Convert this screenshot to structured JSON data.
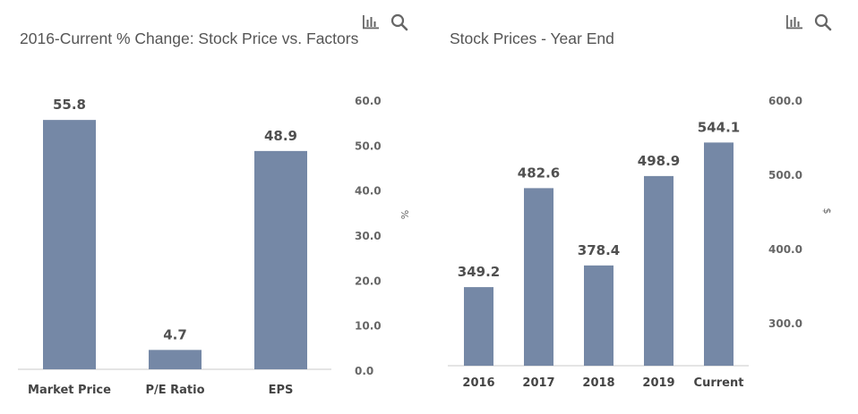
{
  "chart_data": [
    {
      "type": "bar",
      "title": "2016-Current % Change: Stock Price vs. Factors",
      "categories": [
        "Market Price",
        "P/E Ratio",
        "EPS"
      ],
      "values": [
        55.8,
        4.7,
        48.9
      ],
      "value_labels": [
        "55.8",
        "4.7",
        "48.9"
      ],
      "yticks": [
        "60.0",
        "50.0",
        "40.0",
        "30.0",
        "20.0",
        "10.0",
        "0.0"
      ],
      "tick_values": [
        60,
        50,
        40,
        30,
        20,
        10,
        0
      ],
      "ylabel": "%",
      "ylim": [
        0,
        60
      ],
      "yaxis_position": "right",
      "grid": false
    },
    {
      "type": "bar",
      "title": "Stock Prices - Year End",
      "categories": [
        "2016",
        "2017",
        "2018",
        "2019",
        "Current"
      ],
      "values": [
        349.2,
        482.6,
        378.4,
        498.9,
        544.1
      ],
      "value_labels": [
        "349.2",
        "482.6",
        "378.4",
        "498.9",
        "544.1"
      ],
      "yticks": [
        "600.0",
        "500.0",
        "400.0",
        "300.0"
      ],
      "tick_values": [
        600,
        500,
        400,
        300
      ],
      "ylabel": "$",
      "ylim": [
        230,
        600
      ],
      "yaxis_position": "right",
      "grid": false
    }
  ],
  "colors": {
    "bar": "#7588a6",
    "title": "#555555",
    "icon": "#666666"
  },
  "toolbar": {
    "icons": [
      "bar-chart-icon",
      "search-icon"
    ]
  }
}
